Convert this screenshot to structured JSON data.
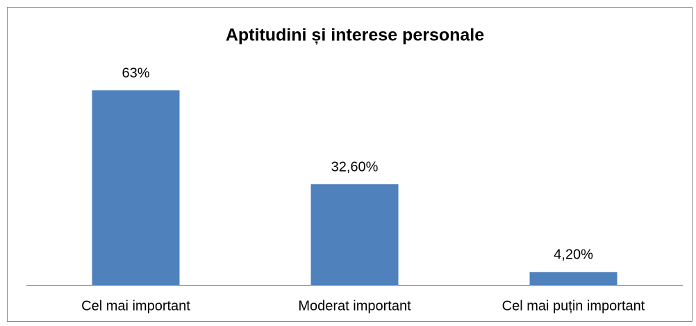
{
  "chart_data": {
    "type": "bar",
    "title": "Aptitudini și interese personale",
    "categories": [
      "Cel mai important",
      "Moderat important",
      "Cel mai puțin important"
    ],
    "values": [
      63,
      32.6,
      4.2
    ],
    "value_labels": [
      "63%",
      "32,60%",
      "4,20%"
    ],
    "color": "#4f81bd"
  }
}
